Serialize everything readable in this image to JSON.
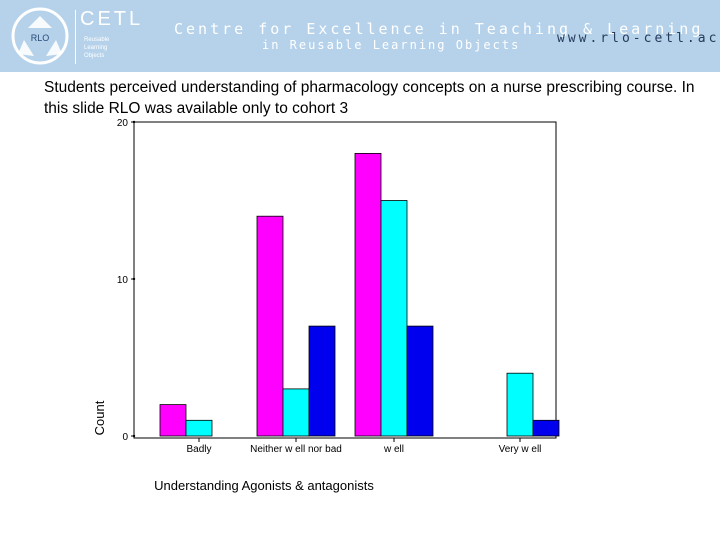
{
  "header": {
    "logo_text": "RLO",
    "brand": "CETL",
    "brand_sub": [
      "Reusable",
      "Learning",
      "Objects"
    ],
    "tagline_line1": "Centre for Excellence in Teaching & Learning",
    "tagline_line2": "in Reusable Learning Objects",
    "url": "www.rlo-cetl.ac.uk"
  },
  "slide": {
    "title": "Students perceived understanding of pharmacology concepts on a nurse prescribing course. In this slide  RLO was available only to cohort 3"
  },
  "chart_data": {
    "type": "bar",
    "title": "",
    "xlabel": "Understanding Agonists & antagonists",
    "ylabel": "Count",
    "categories": [
      "Badly",
      "Neither w ell nor bad",
      "w ell",
      "Very w ell"
    ],
    "series": [
      {
        "color": "#ff00ff",
        "values": [
          2,
          14,
          18,
          0
        ]
      },
      {
        "color": "#00ffff",
        "values": [
          1,
          3,
          15,
          4
        ]
      },
      {
        "color": "#0000ee",
        "values": [
          0,
          7,
          7,
          1
        ]
      }
    ],
    "ylim": [
      0,
      20
    ],
    "yticks": [
      0,
      10,
      20
    ],
    "grid": false
  }
}
